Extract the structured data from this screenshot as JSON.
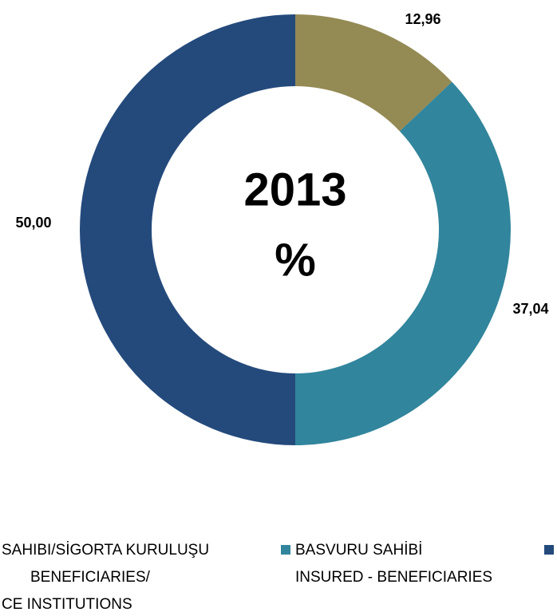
{
  "chart_data": {
    "type": "donut",
    "title": "2013",
    "subtitle": "%",
    "categories": [
      [
        "SAHIBI/SİGORTA KURULUŞU",
        "BENEFICIARIES/",
        "CE INSTITUTIONS"
      ],
      [
        "BASVURU SAHİBİ",
        "INSURED - BENEFICIARIES"
      ],
      null
    ],
    "values": [
      12.96,
      37.04,
      50.0
    ],
    "value_labels": [
      "12,96",
      "37,04",
      "50,00"
    ],
    "colors": [
      "#948a54",
      "#31859c",
      "#244a7c"
    ],
    "legend": "bottom"
  }
}
